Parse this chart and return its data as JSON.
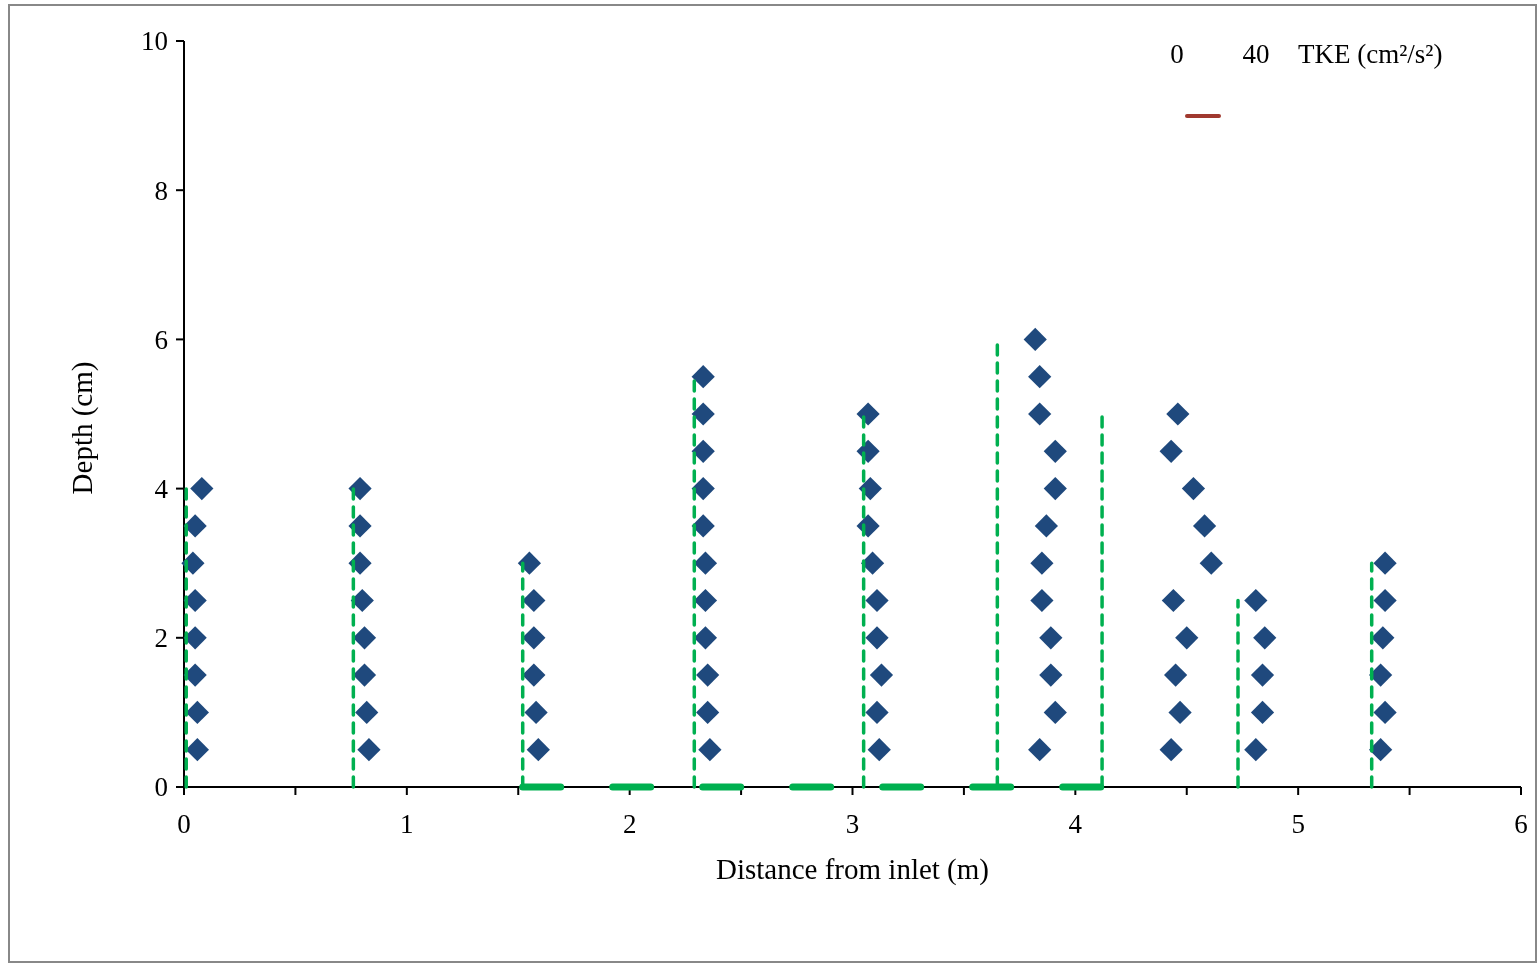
{
  "chart_data": {
    "type": "scatter",
    "xlabel": "Distance from inlet (m)",
    "ylabel": "Depth (cm)",
    "xlim": [
      0,
      6
    ],
    "ylim": [
      0,
      10
    ],
    "xticks": [
      0,
      {
        "value": 0.5,
        "label": null
      },
      1,
      {
        "value": 1.5,
        "label": null
      },
      2,
      {
        "value": 2.5,
        "label": null
      },
      3,
      {
        "value": 3.5,
        "label": null
      },
      4,
      {
        "value": 4.5,
        "label": null
      },
      5,
      {
        "value": 5.5,
        "label": null
      },
      6
    ],
    "yticks": [
      0,
      2,
      4,
      6,
      8,
      10
    ],
    "grid": false,
    "marker": "diamond",
    "annotations": [
      "0",
      "40",
      "TKE (cm²/s²)"
    ],
    "series": [
      {
        "color": "#1f497d",
        "x": [
          0.08,
          0.05,
          0.04,
          0.05,
          0.05,
          0.05,
          0.06,
          0.06,
          0.79,
          0.79,
          0.79,
          0.8,
          0.81,
          0.81,
          0.82,
          0.83,
          1.55,
          1.57,
          1.57,
          1.57,
          1.58,
          1.59,
          2.33,
          2.33,
          2.33,
          2.33,
          2.33,
          2.34,
          2.34,
          2.34,
          2.35,
          2.35,
          2.36,
          3.07,
          3.07,
          3.08,
          3.07,
          3.09,
          3.11,
          3.11,
          3.13,
          3.11,
          3.12,
          3.82,
          3.84,
          3.84,
          3.91,
          3.91,
          3.87,
          3.85,
          3.85,
          3.89,
          3.89,
          3.91,
          3.84,
          4.46,
          4.43,
          4.53,
          4.58,
          4.61,
          4.44,
          4.5,
          4.45,
          4.47,
          4.43,
          4.81,
          4.85,
          4.84,
          4.84,
          4.81,
          5.39,
          5.39,
          5.38,
          5.37,
          5.39,
          5.37
        ],
        "values": [
          4,
          3.5,
          3,
          2.5,
          2,
          1.5,
          1,
          0.5,
          4,
          3.5,
          3,
          2.5,
          2,
          1.5,
          1,
          0.5,
          3,
          2.5,
          2,
          1.5,
          1,
          0.5,
          5.5,
          5,
          4.5,
          4,
          3.5,
          3,
          2.5,
          2,
          1.5,
          1,
          0.5,
          5,
          4.5,
          4,
          3.5,
          3,
          2.5,
          2,
          1.5,
          1,
          0.5,
          6,
          5.5,
          5,
          4.5,
          4,
          3.5,
          3,
          2.5,
          2,
          1.5,
          1,
          0.5,
          5,
          4.5,
          4,
          3.5,
          3,
          2.5,
          2,
          1.5,
          1,
          0.5,
          2.5,
          2,
          1.5,
          1,
          0.5,
          3,
          2.5,
          2,
          1.5,
          1,
          0.5
        ]
      },
      {
        "type": "line",
        "color": "#00b050",
        "line_style": "dashed",
        "marker": "none",
        "x": [
          0.01,
          0.01
        ],
        "values": [
          0,
          4
        ]
      },
      {
        "type": "line",
        "color": "#00b050",
        "line_style": "dashed",
        "marker": "none",
        "x": [
          0.76,
          0.76
        ],
        "values": [
          0,
          4
        ]
      },
      {
        "type": "line",
        "color": "#00b050",
        "line_style": "dashed",
        "marker": "none",
        "x": [
          1.52,
          1.52
        ],
        "values": [
          0,
          3
        ]
      },
      {
        "type": "line",
        "color": "#00b050",
        "line_style": "dashed",
        "marker": "none",
        "x": [
          2.29,
          2.29
        ],
        "values": [
          0,
          5.5
        ]
      },
      {
        "type": "line",
        "color": "#00b050",
        "line_style": "dashed",
        "marker": "none",
        "x": [
          3.05,
          3.05
        ],
        "values": [
          0,
          5
        ]
      },
      {
        "type": "line",
        "color": "#00b050",
        "line_style": "dashed",
        "marker": "none",
        "x": [
          3.65,
          3.65
        ],
        "values": [
          0,
          6
        ]
      },
      {
        "type": "line",
        "color": "#00b050",
        "line_style": "dashed",
        "marker": "none",
        "x": [
          4.12,
          4.12
        ],
        "values": [
          0,
          5
        ]
      },
      {
        "type": "line",
        "color": "#00b050",
        "line_style": "dashed",
        "marker": "none",
        "x": [
          4.73,
          4.73
        ],
        "values": [
          0,
          2.5
        ]
      },
      {
        "type": "line",
        "color": "#00b050",
        "line_style": "dashed",
        "marker": "none",
        "x": [
          5.33,
          5.33
        ],
        "values": [
          0,
          3
        ]
      },
      {
        "type": "line",
        "color": "#00b050",
        "line_style": "dashed",
        "marker": "none",
        "x": [
          1.52,
          4.13
        ],
        "values": [
          0,
          0
        ]
      }
    ]
  }
}
